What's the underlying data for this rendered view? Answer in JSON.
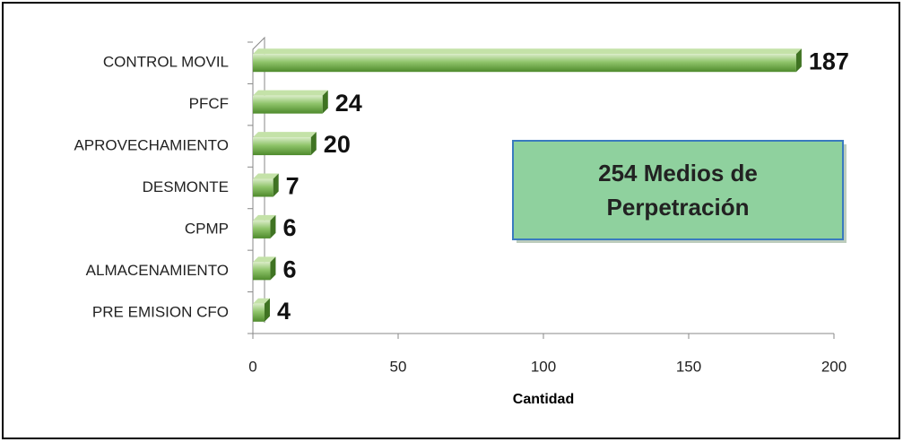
{
  "chart_data": {
    "type": "bar",
    "orientation": "horizontal",
    "categories": [
      "CONTROL MOVIL",
      "PFCF",
      "APROVECHAMIENTO",
      "DESMONTE",
      "CPMP",
      "ALMACENAMIENTO",
      "PRE EMISION CFO"
    ],
    "values": [
      187,
      24,
      20,
      7,
      6,
      6,
      4
    ],
    "color": "#7cb356",
    "xlabel": "Cantidad",
    "xlim": [
      0,
      200
    ],
    "xticks": [
      0,
      50,
      100,
      150,
      200
    ],
    "annotation": "254 Medios de Perpetración",
    "grid": false
  }
}
